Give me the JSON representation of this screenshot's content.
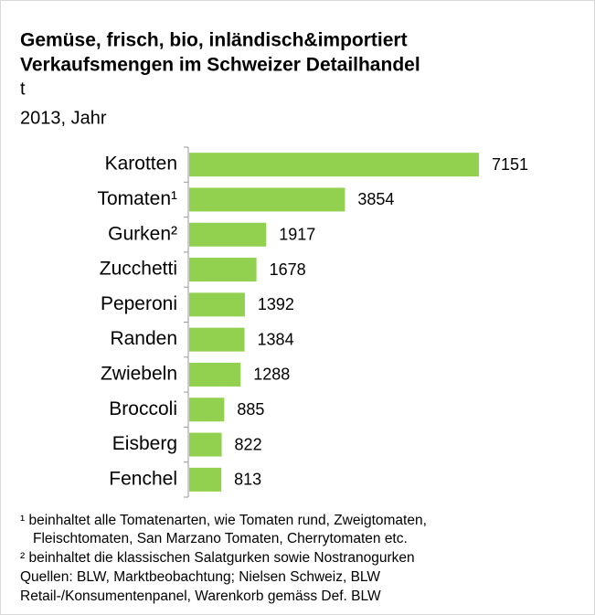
{
  "chart_data": {
    "type": "barh",
    "title": [
      "Gemüse, frisch, bio, inländisch&importiert",
      "Verkaufsmengen im Schweizer Detailhandel"
    ],
    "unit": "t",
    "subtitle": "2013, Jahr",
    "categories": [
      "Karotten",
      "Tomaten¹",
      "Gurken²",
      "Zucchetti",
      "Peperoni",
      "Randen",
      "Zwiebeln",
      "Broccoli",
      "Eisberg",
      "Fenchel"
    ],
    "values": [
      7151,
      3854,
      1917,
      1678,
      1392,
      1384,
      1288,
      885,
      822,
      813
    ],
    "color": "#92d050",
    "footnotes": [
      "¹ beinhaltet alle Tomatenarten, wie Tomaten rund, Zweigtomaten,",
      "Fleischtomaten, San Marzano Tomaten, Cherrytomaten etc.",
      "² beinhaltet die klassischen Salatgurken sowie Nostranogurken",
      "Quellen: BLW, Marktbeobachtung; Nielsen Schweiz, BLW",
      "Retail-/Konsumentenpanel, Warenkorb gemäss Def. BLW"
    ]
  }
}
